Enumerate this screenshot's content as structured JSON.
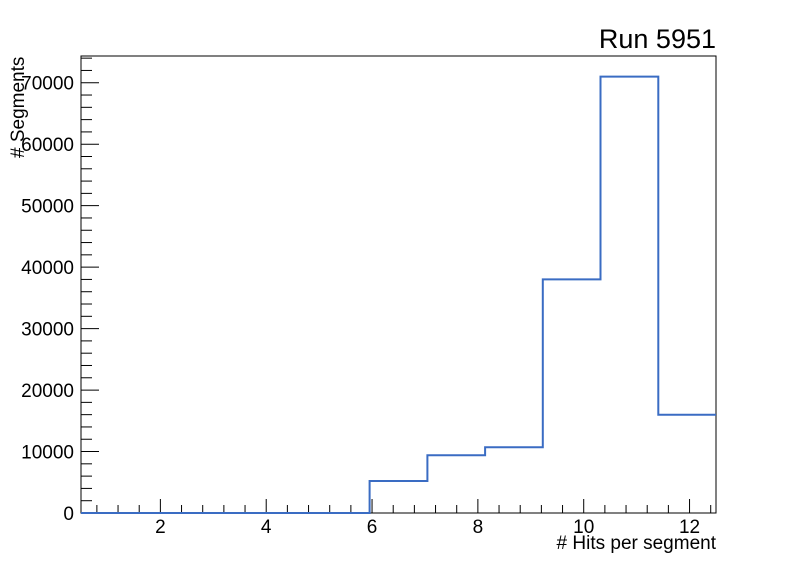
{
  "page": {
    "background": "#ffffff"
  },
  "chart_data": {
    "type": "histogram-step",
    "title": "Run 5951",
    "xlabel": "# Hits per segment",
    "ylabel": "# Segments",
    "xlim": [
      0.5,
      12.5
    ],
    "ylim": [
      0,
      74350
    ],
    "bin_edges": [
      0.5,
      1.5909,
      2.6818,
      3.7727,
      4.8636,
      5.9545,
      7.0455,
      8.1364,
      9.2273,
      10.3182,
      11.4091,
      12.5
    ],
    "counts": [
      0,
      0,
      0,
      0,
      0,
      5200,
      9400,
      10700,
      38000,
      71000,
      16000
    ],
    "x_major_ticks": [
      2,
      4,
      6,
      8,
      10,
      12
    ],
    "x_tick_labels": [
      "2",
      "4",
      "6",
      "8",
      "10",
      "12"
    ],
    "x_minor_tick_step": 0.4,
    "y_major_ticks": [
      0,
      10000,
      20000,
      30000,
      40000,
      50000,
      60000,
      70000
    ],
    "y_tick_labels": [
      "0",
      "10000",
      "20000",
      "30000",
      "40000",
      "50000",
      "60000",
      "70000"
    ],
    "y_minor_tick_step": 2000,
    "line_color": "#3a6cc3",
    "frame_color": "#000000",
    "text_color": "#000000",
    "grid": false,
    "legend": null
  }
}
